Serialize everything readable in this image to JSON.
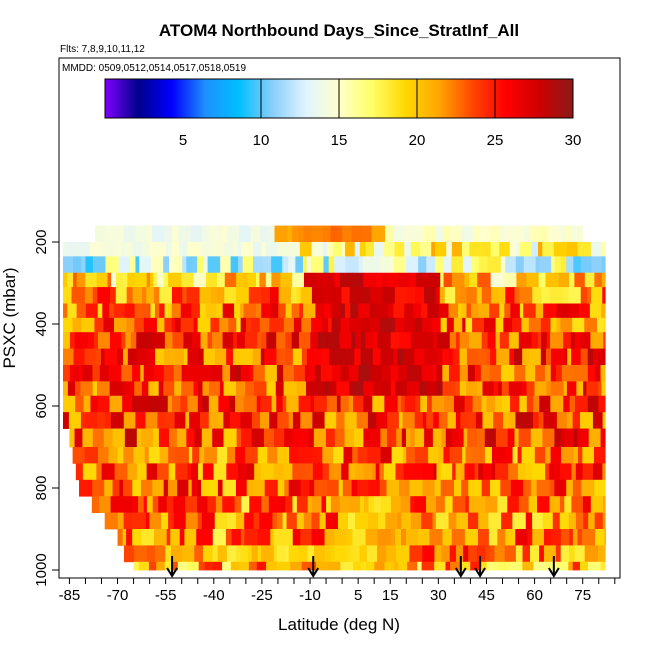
{
  "chart_data": {
    "type": "heatmap",
    "title": "ATOM4 Northbound Days_Since_StratInf_All",
    "subtitle_flights": "Flts: 7,8,9,10,11,12",
    "subtitle_dates": "MMDD: 0509,0512,0514,0517,0518,0519",
    "xlabel": "Latitude (deg N)",
    "ylabel": "PSXC (mbar)",
    "xlim": [
      -87,
      86
    ],
    "ylim": [
      1000,
      0
    ],
    "x_tick_labels": [
      "-85",
      "-70",
      "-55",
      "-40",
      "-25",
      "-10",
      "5",
      "15",
      "30",
      "45",
      "60",
      "75"
    ],
    "x_tick_values": [
      -85,
      -70,
      -55,
      -40,
      -25,
      -10,
      5,
      15,
      30,
      45,
      60,
      75
    ],
    "y_tick_labels": [
      "200",
      "400",
      "600",
      "800",
      "1000"
    ],
    "y_tick_values": [
      200,
      400,
      600,
      800,
      1000
    ],
    "colorbar": {
      "min": 0,
      "max": 30,
      "tick_values": [
        5,
        10,
        15,
        20,
        25,
        30
      ],
      "tick_labels": [
        "5",
        "10",
        "15",
        "20",
        "25",
        "30"
      ],
      "colors": [
        "#7f00ff",
        "#00008b",
        "#0000ff",
        "#1e90ff",
        "#00bfff",
        "#87cefa",
        "#e0f4ff",
        "#ffffcc",
        "#ffff66",
        "#ffd700",
        "#ffa500",
        "#ff4500",
        "#ff0000",
        "#cd0000",
        "#8b1a1a"
      ]
    },
    "arrow_latitudes": [
      -53,
      -9,
      37,
      43,
      66
    ],
    "layer_bounds_mbar": [
      160,
      200,
      235,
      275,
      310,
      350,
      385,
      420,
      460,
      500,
      540,
      575,
      615,
      655,
      700,
      740,
      780,
      820,
      860,
      900,
      940,
      980,
      1000
    ],
    "layer_lat_min": [
      -77,
      -87,
      -87,
      -87,
      -87,
      -87,
      -87,
      -87,
      -87,
      -87,
      -87,
      -87,
      -87,
      -85,
      -84,
      -83,
      -82,
      -78,
      -74,
      -70,
      -68,
      -65
    ],
    "layer_lat_max": [
      75,
      82,
      82,
      82,
      82,
      82,
      82,
      82,
      82,
      82,
      82,
      82,
      82,
      82,
      82,
      82,
      82,
      82,
      82,
      82,
      82,
      82
    ],
    "layer_base_days": [
      17,
      17,
      14,
      19,
      22,
      23,
      23,
      24,
      24,
      24,
      24,
      24,
      24,
      24,
      23,
      23,
      23,
      22,
      22,
      22,
      22,
      21
    ]
  }
}
